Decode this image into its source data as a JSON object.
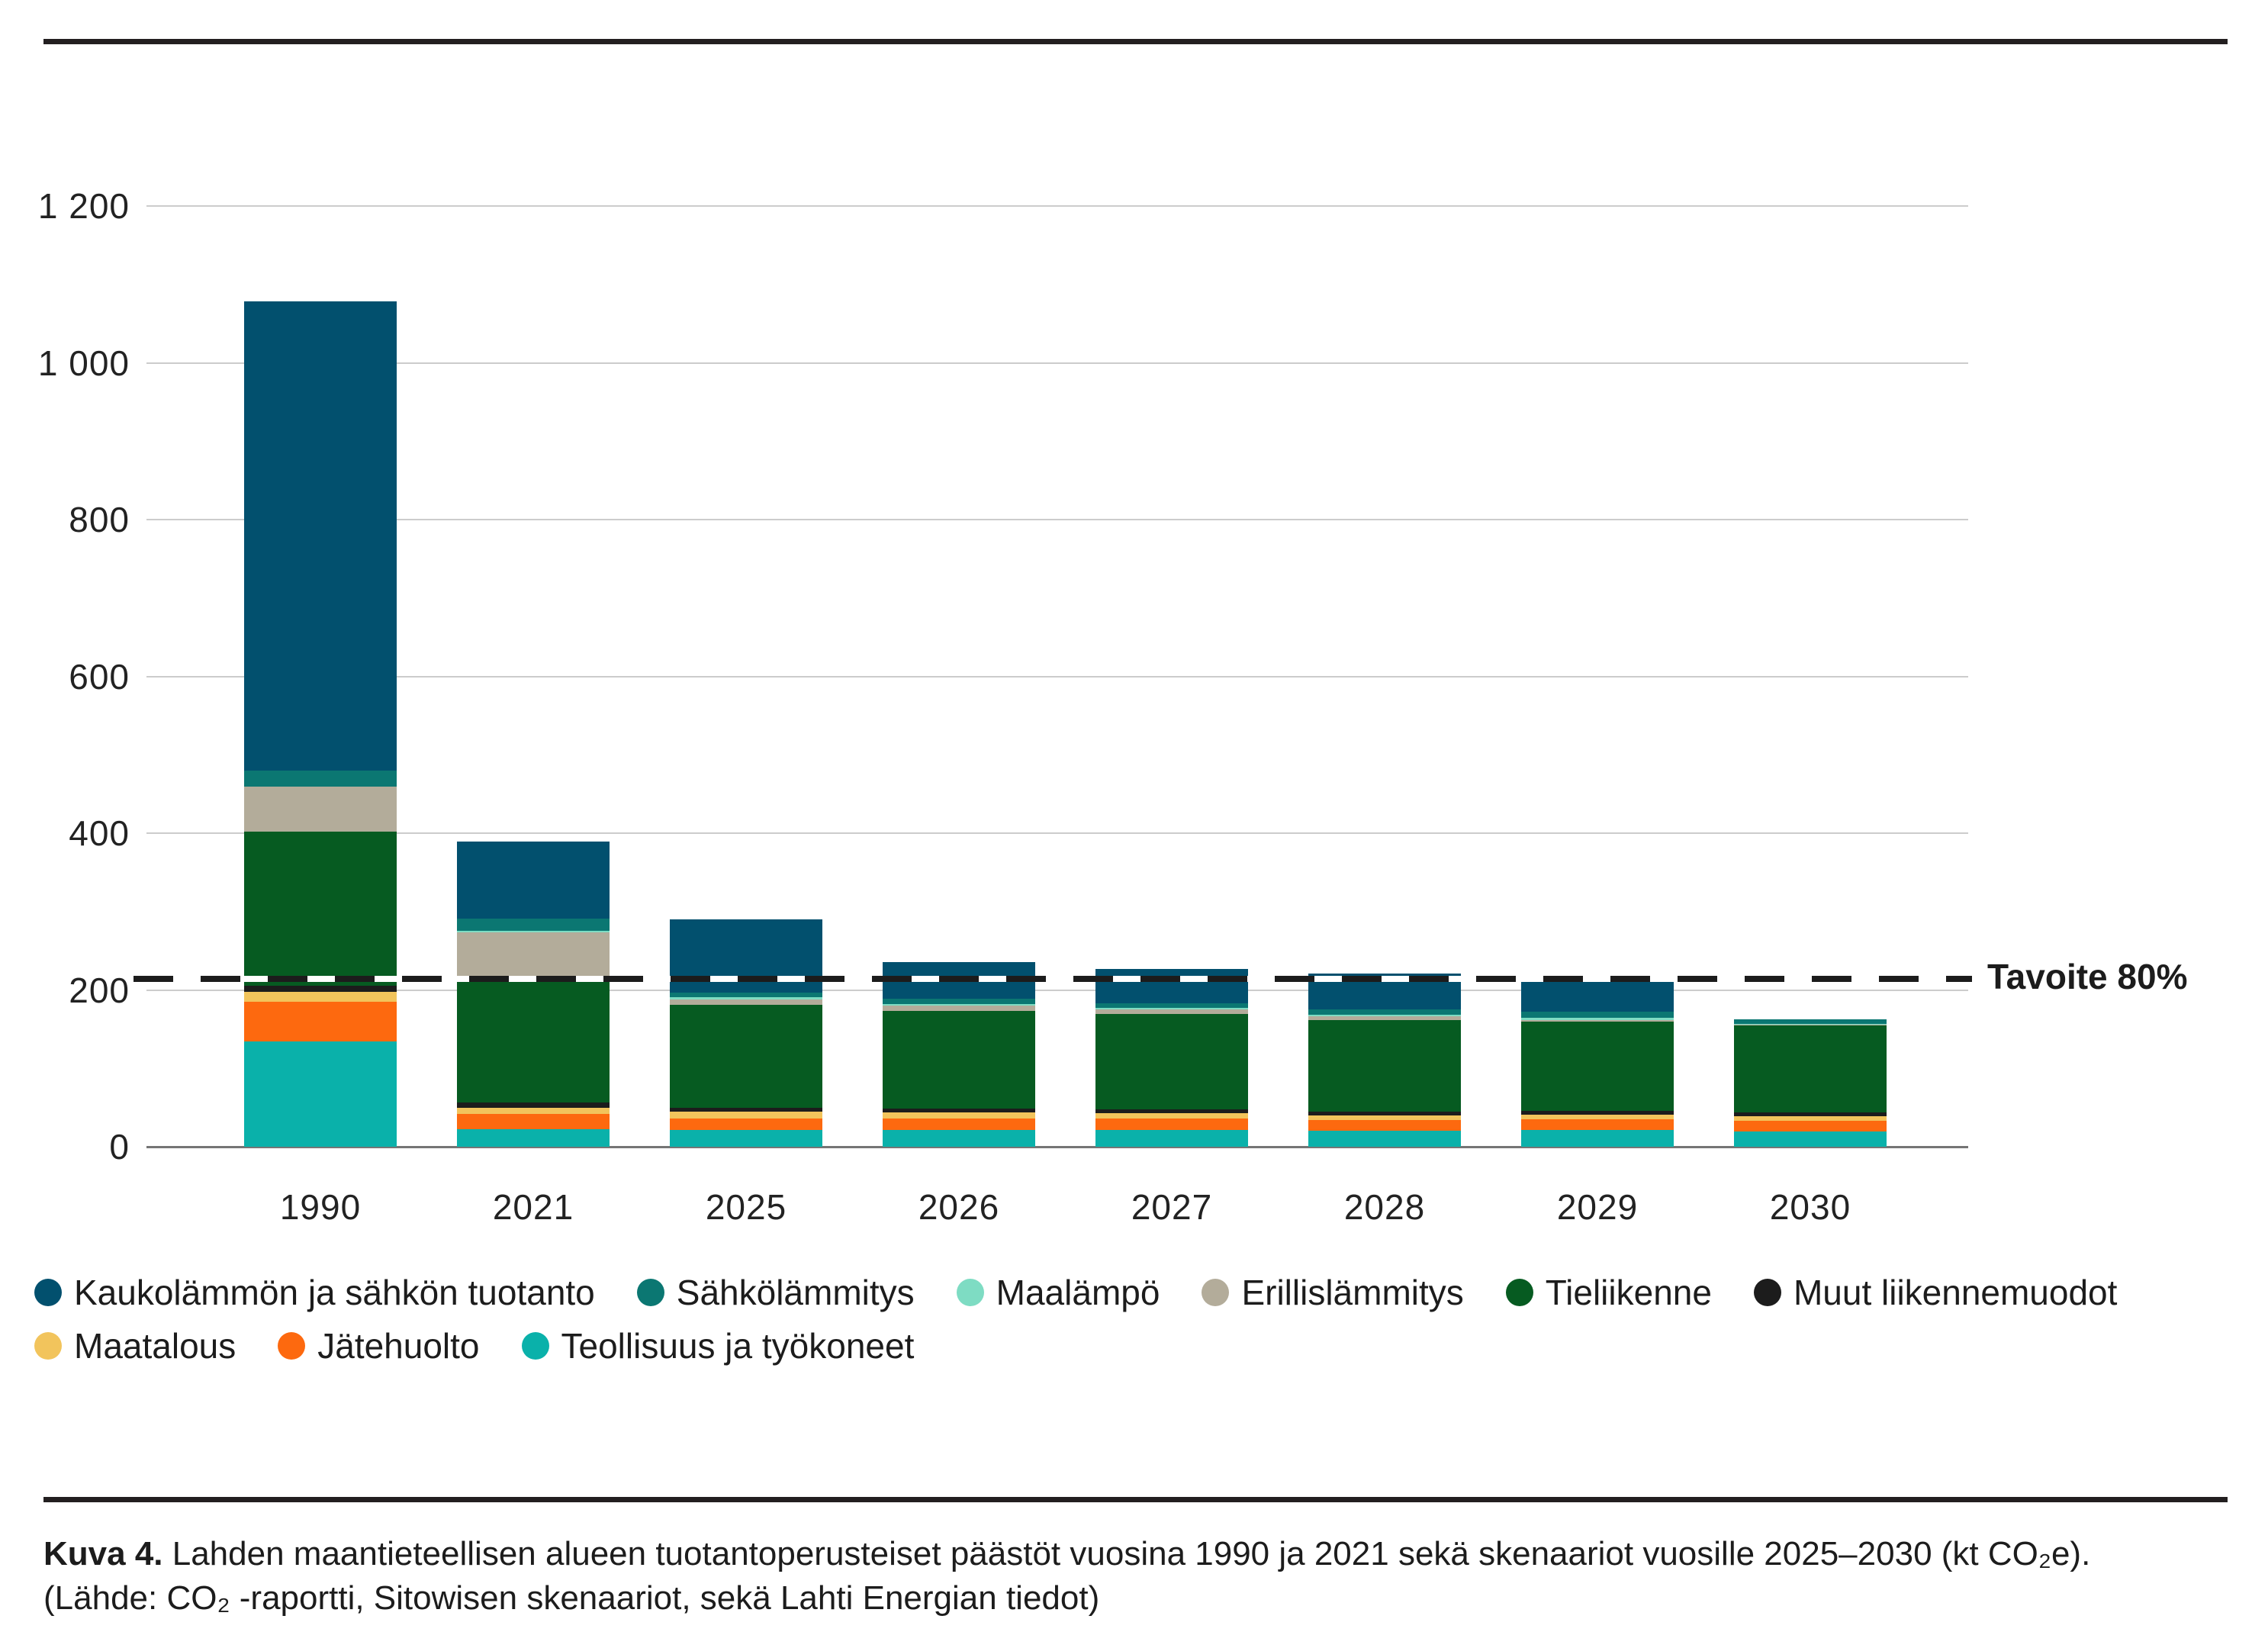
{
  "chart_data": {
    "type": "bar",
    "stacked": true,
    "title": "",
    "xlabel": "",
    "ylabel": "",
    "unit": "kt CO₂e",
    "categories": [
      "1990",
      "2021",
      "2025",
      "2026",
      "2027",
      "2028",
      "2029",
      "2030"
    ],
    "series": [
      {
        "name": "Teollisuus ja työkoneet",
        "color": "#0AB1AA",
        "values": [
          134,
          22,
          21,
          21,
          21,
          20,
          21,
          19
        ]
      },
      {
        "name": "Jätehuolto",
        "color": "#FD690F",
        "values": [
          51,
          20,
          15,
          15,
          15,
          14,
          14,
          14
        ]
      },
      {
        "name": "Maatalous",
        "color": "#F2C45C",
        "values": [
          13,
          8,
          9,
          8,
          7,
          6,
          6,
          6
        ]
      },
      {
        "name": "Muut liikennemuodot",
        "color": "#1C1C1C",
        "values": [
          7,
          6,
          5,
          5,
          5,
          5,
          5,
          5
        ]
      },
      {
        "name": "Tieliikenne",
        "color": "#065B21",
        "values": [
          197,
          156,
          131,
          124,
          121,
          117,
          114,
          111
        ]
      },
      {
        "name": "Erillislämmitys",
        "color": "#B3AC9A",
        "values": [
          57,
          61,
          7,
          7,
          6,
          4,
          2,
          1
        ]
      },
      {
        "name": "Maalämpö",
        "color": "#7EDCC3",
        "values": [
          0,
          2,
          3,
          2,
          2,
          2,
          2,
          1
        ]
      },
      {
        "name": "Sähkölämmitys",
        "color": "#0B7772",
        "values": [
          21,
          16,
          6,
          7,
          6,
          7,
          8,
          6
        ]
      },
      {
        "name": "Kaukolämmön ja sähkön tuotanto",
        "color": "#02506E",
        "values": [
          598,
          98,
          93,
          47,
          44,
          46,
          38,
          0
        ]
      }
    ],
    "totals": [
      1078,
      389,
      290,
      236,
      227,
      221,
      210,
      163
    ],
    "ylim": [
      0,
      1200
    ],
    "yticks": [
      {
        "value": 0,
        "label": "0"
      },
      {
        "value": 200,
        "label": "200"
      },
      {
        "value": 400,
        "label": "400"
      },
      {
        "value": 600,
        "label": "600"
      },
      {
        "value": 800,
        "label": "800"
      },
      {
        "value": 1000,
        "label": "1 000"
      },
      {
        "value": 1200,
        "label": "1 200"
      }
    ],
    "grid": "horizontal",
    "legend_position": "bottom-left",
    "target_line": {
      "value": 214,
      "label": "Tavoite 80%"
    },
    "legend_rows": [
      [
        "Kaukolämmön ja sähkön tuotanto",
        "Sähkölämmitys",
        "Maalämpö",
        "Erillislämmitys",
        "Tieliikenne",
        "Muut liikennemuodot"
      ],
      [
        "Maatalous",
        "Jätehuolto",
        "Teollisuus ja työkoneet"
      ]
    ]
  },
  "caption": {
    "prefix": "Kuva 4.",
    "line1": " Lahden maantieteellisen alueen tuotantoperusteiset päästöt vuosina 1990 ja 2021 sekä skenaariot vuosille 2025–2030 (kt CO₂e).",
    "line2": "(Lähde: CO₂ -raportti, Sitowisen skenaariot, sekä Lahti Energian tiedot)"
  }
}
